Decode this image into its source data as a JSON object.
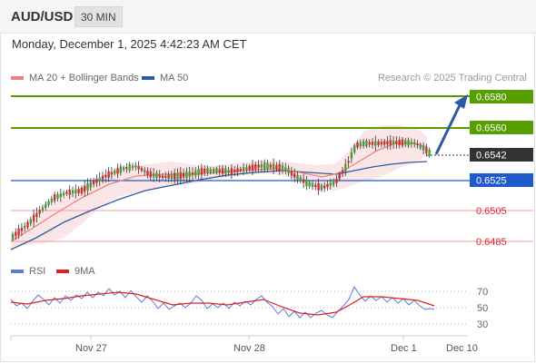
{
  "header": {
    "symbol": "AUD/USD",
    "interval": "30 MIN",
    "datetime": "Monday, December 1, 2025 4:42:23 AM CET"
  },
  "legend": {
    "ma20_label": "MA 20 + Bollinger Bands",
    "ma50_label": "MA 50",
    "credit": "Research © 2025 Trading Central"
  },
  "rsi_legend": {
    "rsi_label": "RSI",
    "ma9_label": "9MA"
  },
  "colors": {
    "ma20": "#f08080",
    "ma50": "#2c5aa0",
    "green_level": "#55a000",
    "blue_level": "#1f5ac8",
    "red_level": "#e06070",
    "current_price": "#333333",
    "rsi": "#5a7ed6",
    "ma9": "#e02020"
  },
  "price_levels": [
    {
      "price": "0.6580",
      "type": "resistance"
    },
    {
      "price": "0.6560",
      "type": "resistance"
    },
    {
      "price": "0.6542",
      "type": "current"
    },
    {
      "price": "0.6525",
      "type": "pivot"
    },
    {
      "price": "0.6505",
      "type": "support"
    },
    {
      "price": "0.6485",
      "type": "support"
    }
  ],
  "rsi_axis": [
    "70",
    "50",
    "30"
  ],
  "time_axis": [
    "Nov 27",
    "Nov 28",
    "Dec 1",
    "Dec 10"
  ]
}
